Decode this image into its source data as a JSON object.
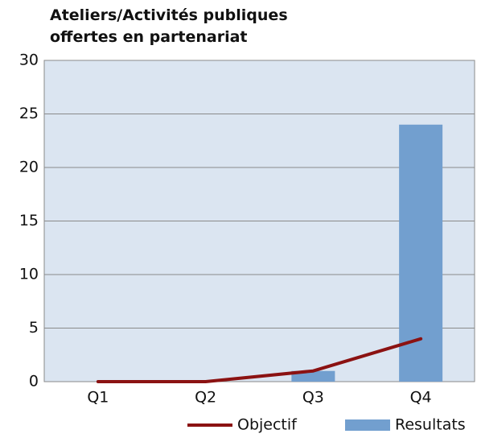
{
  "chart_data": {
    "type": "bar",
    "title": "Ateliers/Activités publiques offertes en partenariat",
    "categories": [
      "Q1",
      "Q2",
      "Q3",
      "Q4"
    ],
    "series": [
      {
        "name": "Objectif",
        "type": "line",
        "color": "#8b1212",
        "values": [
          0,
          0,
          1,
          4
        ]
      },
      {
        "name": "Resultats",
        "type": "bar",
        "color": "#729fcf",
        "values": [
          0,
          0,
          1,
          24
        ]
      }
    ],
    "ylim": [
      0,
      30
    ],
    "yticks": [
      0,
      5,
      10,
      15,
      20,
      25,
      30
    ],
    "grid": true,
    "legend": "bottom"
  }
}
